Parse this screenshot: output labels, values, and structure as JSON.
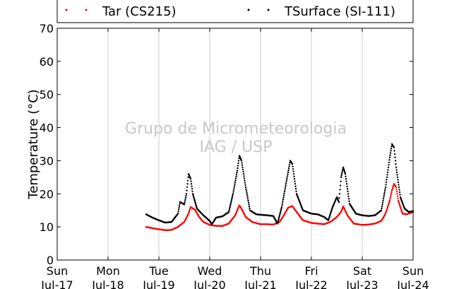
{
  "chart_data": {
    "type": "scatter",
    "title": "",
    "xlabel": "",
    "ylabel": "Temperature (°C)",
    "ylim": [
      0,
      70
    ],
    "y_ticks": [
      0,
      10,
      20,
      30,
      40,
      50,
      60,
      70
    ],
    "x_start": "2016-07-17",
    "x_end": "2016-07-24",
    "x_ticks": [
      {
        "date": "2016-07-17",
        "day": "Sun",
        "label": "Jul-17"
      },
      {
        "date": "2016-07-18",
        "day": "Mon",
        "label": "Jul-18"
      },
      {
        "date": "2016-07-19",
        "day": "Tue",
        "label": "Jul-19"
      },
      {
        "date": "2016-07-20",
        "day": "Wed",
        "label": "Jul-20"
      },
      {
        "date": "2016-07-21",
        "day": "Thu",
        "label": "Jul-21"
      },
      {
        "date": "2016-07-22",
        "day": "Fri",
        "label": "Jul-22"
      },
      {
        "date": "2016-07-23",
        "day": "Sat",
        "label": "Jul-23"
      },
      {
        "date": "2016-07-24",
        "day": "Sun",
        "label": "Jul-24"
      }
    ],
    "grid": "vertical",
    "legend_position": "top",
    "watermark": [
      "Grupo de Micrometeorologia",
      "IAG / USP"
    ],
    "series": [
      {
        "name": "Tar (CS215)",
        "color": "#ff0000",
        "points": [
          [
            "2016-07-18 18:00",
            10.0
          ],
          [
            "2016-07-18 21:00",
            9.6
          ],
          [
            "2016-07-19 00:00",
            9.3
          ],
          [
            "2016-07-19 03:00",
            9.0
          ],
          [
            "2016-07-19 06:00",
            9.1
          ],
          [
            "2016-07-19 09:00",
            10.0
          ],
          [
            "2016-07-19 12:00",
            11.5
          ],
          [
            "2016-07-19 14:00",
            14.0
          ],
          [
            "2016-07-19 15:00",
            16.0
          ],
          [
            "2016-07-19 17:00",
            15.2
          ],
          [
            "2016-07-19 19:00",
            13.0
          ],
          [
            "2016-07-19 21:00",
            11.5
          ],
          [
            "2016-07-20 00:00",
            10.6
          ],
          [
            "2016-07-20 03:00",
            10.3
          ],
          [
            "2016-07-20 06:00",
            10.3
          ],
          [
            "2016-07-20 09:00",
            11.0
          ],
          [
            "2016-07-20 12:00",
            13.5
          ],
          [
            "2016-07-20 14:00",
            16.5
          ],
          [
            "2016-07-20 15:00",
            15.5
          ],
          [
            "2016-07-20 17:00",
            13.0
          ],
          [
            "2016-07-20 20:00",
            11.5
          ],
          [
            "2016-07-21 00:00",
            10.8
          ],
          [
            "2016-07-21 03:00",
            10.8
          ],
          [
            "2016-07-21 06:00",
            10.7
          ],
          [
            "2016-07-21 09:00",
            11.5
          ],
          [
            "2016-07-21 11:00",
            13.5
          ],
          [
            "2016-07-21 13:00",
            15.8
          ],
          [
            "2016-07-21 15:00",
            16.3
          ],
          [
            "2016-07-21 17:00",
            14.5
          ],
          [
            "2016-07-21 20:00",
            12.0
          ],
          [
            "2016-07-22 00:00",
            11.2
          ],
          [
            "2016-07-22 03:00",
            11.0
          ],
          [
            "2016-07-22 06:00",
            10.8
          ],
          [
            "2016-07-22 09:00",
            11.5
          ],
          [
            "2016-07-22 12:00",
            13.0
          ],
          [
            "2016-07-22 14:00",
            14.5
          ],
          [
            "2016-07-22 15:00",
            16.2
          ],
          [
            "2016-07-22 17:00",
            13.5
          ],
          [
            "2016-07-22 20:00",
            11.0
          ],
          [
            "2016-07-23 00:00",
            10.6
          ],
          [
            "2016-07-23 03:00",
            10.7
          ],
          [
            "2016-07-23 06:00",
            11.0
          ],
          [
            "2016-07-23 09:00",
            11.8
          ],
          [
            "2016-07-23 11:00",
            14.0
          ],
          [
            "2016-07-23 13:00",
            18.0
          ],
          [
            "2016-07-23 14:00",
            21.0
          ],
          [
            "2016-07-23 15:00",
            23.0
          ],
          [
            "2016-07-23 16:00",
            22.0
          ],
          [
            "2016-07-23 17:00",
            18.0
          ],
          [
            "2016-07-23 19:00",
            14.0
          ],
          [
            "2016-07-23 21:00",
            13.8
          ],
          [
            "2016-07-24 00:00",
            14.5
          ]
        ]
      },
      {
        "name": "TSurface (SI-111)",
        "color": "#000000",
        "points": [
          [
            "2016-07-18 18:00",
            13.8
          ],
          [
            "2016-07-18 21:00",
            12.8
          ],
          [
            "2016-07-19 00:00",
            12.0
          ],
          [
            "2016-07-19 03:00",
            11.3
          ],
          [
            "2016-07-19 06:00",
            11.5
          ],
          [
            "2016-07-19 09:00",
            14.0
          ],
          [
            "2016-07-19 10:00",
            17.5
          ],
          [
            "2016-07-19 12:00",
            16.8
          ],
          [
            "2016-07-19 13:00",
            20.0
          ],
          [
            "2016-07-19 14:00",
            26.0
          ],
          [
            "2016-07-19 15:00",
            24.5
          ],
          [
            "2016-07-19 16:00",
            20.0
          ],
          [
            "2016-07-19 18:00",
            15.5
          ],
          [
            "2016-07-19 21:00",
            13.5
          ],
          [
            "2016-07-20 00:00",
            11.8
          ],
          [
            "2016-07-20 01:00",
            10.8
          ],
          [
            "2016-07-20 03:00",
            12.8
          ],
          [
            "2016-07-20 06:00",
            13.2
          ],
          [
            "2016-07-20 09:00",
            14.5
          ],
          [
            "2016-07-20 11:00",
            20.0
          ],
          [
            "2016-07-20 13:00",
            27.0
          ],
          [
            "2016-07-20 14:00",
            31.5
          ],
          [
            "2016-07-20 15:00",
            30.0
          ],
          [
            "2016-07-20 17:00",
            22.0
          ],
          [
            "2016-07-20 19:00",
            15.0
          ],
          [
            "2016-07-20 22:00",
            13.8
          ],
          [
            "2016-07-21 03:00",
            13.5
          ],
          [
            "2016-07-21 06:00",
            13.3
          ],
          [
            "2016-07-21 08:00",
            11.0
          ],
          [
            "2016-07-21 10:00",
            16.0
          ],
          [
            "2016-07-21 12:00",
            23.0
          ],
          [
            "2016-07-21 14:00",
            30.0
          ],
          [
            "2016-07-21 15:00",
            29.0
          ],
          [
            "2016-07-21 17:00",
            20.0
          ],
          [
            "2016-07-21 20:00",
            15.0
          ],
          [
            "2016-07-22 00:00",
            14.0
          ],
          [
            "2016-07-22 03:00",
            13.8
          ],
          [
            "2016-07-22 06:00",
            13.0
          ],
          [
            "2016-07-22 08:00",
            12.0
          ],
          [
            "2016-07-22 10:00",
            16.0
          ],
          [
            "2016-07-22 12:00",
            19.0
          ],
          [
            "2016-07-22 13:00",
            17.5
          ],
          [
            "2016-07-22 14:00",
            25.0
          ],
          [
            "2016-07-22 15:00",
            28.0
          ],
          [
            "2016-07-22 16:00",
            26.0
          ],
          [
            "2016-07-22 18:00",
            17.0
          ],
          [
            "2016-07-22 21:00",
            14.0
          ],
          [
            "2016-07-23 00:00",
            13.5
          ],
          [
            "2016-07-23 03:00",
            13.3
          ],
          [
            "2016-07-23 06:00",
            13.5
          ],
          [
            "2016-07-23 09:00",
            15.0
          ],
          [
            "2016-07-23 11:00",
            22.0
          ],
          [
            "2016-07-23 13:00",
            31.0
          ],
          [
            "2016-07-23 14:00",
            35.0
          ],
          [
            "2016-07-23 15:00",
            34.0
          ],
          [
            "2016-07-23 16:00",
            28.0
          ],
          [
            "2016-07-23 18:00",
            19.0
          ],
          [
            "2016-07-23 20:00",
            15.5
          ],
          [
            "2016-07-23 22:00",
            14.5
          ],
          [
            "2016-07-24 00:00",
            14.8
          ]
        ]
      }
    ]
  }
}
